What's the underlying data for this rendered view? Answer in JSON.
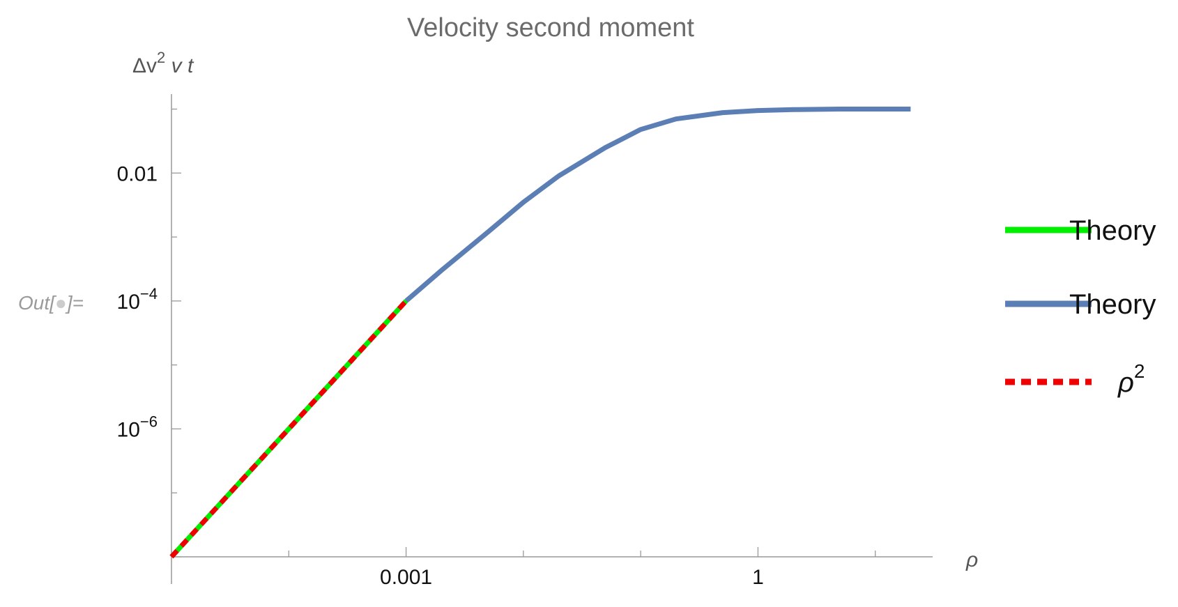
{
  "notebook": {
    "out_label": "Out[",
    "out_label_end": "]="
  },
  "chart_data": {
    "type": "line",
    "title": "Velocity second moment",
    "ylabel_parts": [
      "Δv",
      "2",
      " v t"
    ],
    "xlabel": "ρ",
    "x_scale": "log",
    "y_scale": "log",
    "xlim": [
      1e-05,
      30
    ],
    "ylim": [
      1e-08,
      0.25
    ],
    "x_ticks": [
      {
        "value": 0.001,
        "label": "0.001"
      },
      {
        "value": 1,
        "label": "1"
      }
    ],
    "y_ticks": [
      {
        "value": 0.01,
        "base": "0.01",
        "sup": ""
      },
      {
        "value": 0.0001,
        "base": "10",
        "sup": "−4"
      },
      {
        "value": 1e-06,
        "base": "10",
        "sup": "−6"
      }
    ],
    "series": [
      {
        "name": "Theory",
        "color": "#00ee00",
        "style": "solid",
        "x": [
          1e-05,
          0.0001,
          0.001
        ],
        "y": [
          1e-08,
          1e-06,
          0.0001
        ]
      },
      {
        "name": "Theory",
        "color": "#5b7fb5",
        "style": "solid",
        "x": [
          0.001,
          0.002,
          0.005,
          0.01,
          0.02,
          0.05,
          0.1,
          0.2,
          0.5,
          1,
          2,
          5,
          10,
          20
        ],
        "y": [
          0.0001,
          0.0003,
          0.0012,
          0.0035,
          0.009,
          0.025,
          0.048,
          0.07,
          0.088,
          0.095,
          0.098,
          0.1,
          0.1,
          0.1
        ]
      },
      {
        "name_parts": [
          "ρ",
          "2"
        ],
        "color": "#ee0000",
        "style": "dashed",
        "x": [
          1e-05,
          0.0001,
          0.001
        ],
        "y": [
          1e-08,
          1e-06,
          0.0001
        ]
      }
    ],
    "legend_position": "right"
  }
}
